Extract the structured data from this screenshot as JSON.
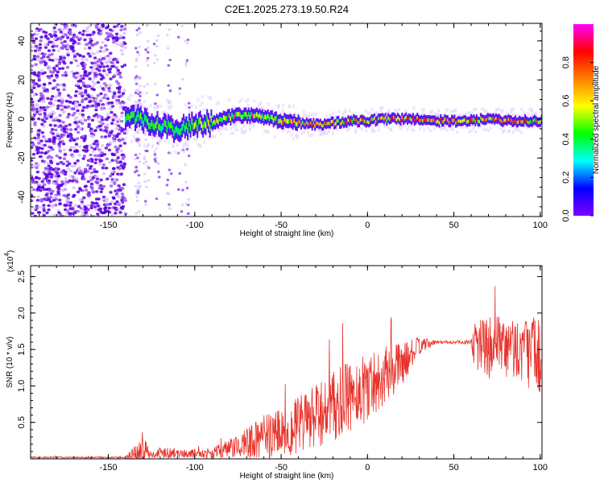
{
  "title": "C2E1.2025.273.19.50.R24",
  "chart_data": [
    {
      "type": "heatmap",
      "title": "C2E1.2025.273.19.50.R24",
      "xlabel": "Height of straight line (km)",
      "ylabel": "Frequency (Hz)",
      "xlim": [
        -195,
        101
      ],
      "ylim": [
        -50,
        49
      ],
      "xticks": [
        -150,
        -100,
        -50,
        0,
        50,
        100
      ],
      "yticks": [
        -40,
        -20,
        0,
        20,
        40
      ],
      "colorbar": {
        "label": "Normalized spectral amplitude",
        "range": [
          0,
          1
        ],
        "ticks": [
          "0.0",
          "0.2",
          "0.4",
          "0.6",
          "0.8"
        ],
        "colormap": [
          "#ffffff",
          "#7f00ff",
          "#0000ff",
          "#00ffff",
          "#00ff00",
          "#ffff00",
          "#ff8000",
          "#ff0000",
          "#ff00ff"
        ]
      },
      "ridge": [
        {
          "x": -140,
          "f": 2
        },
        {
          "x": -130,
          "f": 0
        },
        {
          "x": -120,
          "f": -4
        },
        {
          "x": -110,
          "f": -5
        },
        {
          "x": -100,
          "f": -3
        },
        {
          "x": -90,
          "f": -2
        },
        {
          "x": -80,
          "f": 1
        },
        {
          "x": -70,
          "f": 2
        },
        {
          "x": -60,
          "f": 1
        },
        {
          "x": -50,
          "f": -1
        },
        {
          "x": -40,
          "f": -2
        },
        {
          "x": -30,
          "f": -3
        },
        {
          "x": -20,
          "f": -2
        },
        {
          "x": -10,
          "f": -1
        },
        {
          "x": 0,
          "f": -1
        },
        {
          "x": 10,
          "f": 0
        },
        {
          "x": 20,
          "f": 0
        },
        {
          "x": 30,
          "f": 0
        },
        {
          "x": 40,
          "f": -1
        },
        {
          "x": 50,
          "f": -1
        },
        {
          "x": 60,
          "f": -1
        },
        {
          "x": 70,
          "f": 0
        },
        {
          "x": 80,
          "f": -1
        },
        {
          "x": 90,
          "f": -1
        },
        {
          "x": 100,
          "f": -1
        }
      ]
    },
    {
      "type": "line",
      "xlabel": "Height of straight line (km)",
      "ylabel": "SNR (10 * v/v)",
      "multiplier": "(x10",
      "multiplier_exp": "4",
      "multiplier_close": ")",
      "xlim": [
        -195,
        101
      ],
      "ylim": [
        0,
        2.65
      ],
      "xticks": [
        -150,
        -100,
        -50,
        0,
        50,
        100
      ],
      "yticks": [
        "0.5",
        "1.0",
        "1.5",
        "2.0",
        "2.5"
      ],
      "color": "#e8332b",
      "envelope": [
        {
          "x": -195,
          "mean": 0.02,
          "amp": 0.01
        },
        {
          "x": -140,
          "mean": 0.02,
          "amp": 0.01
        },
        {
          "x": -135,
          "mean": 0.08,
          "amp": 0.12
        },
        {
          "x": -130,
          "mean": 0.12,
          "amp": 0.2
        },
        {
          "x": -125,
          "mean": 0.05,
          "amp": 0.04
        },
        {
          "x": -118,
          "mean": 0.1,
          "amp": 0.1
        },
        {
          "x": -110,
          "mean": 0.07,
          "amp": 0.05
        },
        {
          "x": -90,
          "mean": 0.08,
          "amp": 0.07
        },
        {
          "x": -78,
          "mean": 0.15,
          "amp": 0.15
        },
        {
          "x": -60,
          "mean": 0.3,
          "amp": 0.3
        },
        {
          "x": -40,
          "mean": 0.45,
          "amp": 0.4
        },
        {
          "x": -20,
          "mean": 0.7,
          "amp": 0.5
        },
        {
          "x": 0,
          "mean": 1.0,
          "amp": 0.5
        },
        {
          "x": 20,
          "mean": 1.3,
          "amp": 0.3
        },
        {
          "x": 30,
          "mean": 1.55,
          "amp": 0.12
        },
        {
          "x": 40,
          "mean": 1.6,
          "amp": 0.02
        },
        {
          "x": 60,
          "mean": 1.6,
          "amp": 0.03
        },
        {
          "x": 62,
          "mean": 1.6,
          "amp": 0.4
        },
        {
          "x": 75,
          "mean": 1.5,
          "amp": 0.45
        },
        {
          "x": 90,
          "mean": 1.5,
          "amp": 0.45
        },
        {
          "x": 100,
          "mean": 1.4,
          "amp": 0.6
        }
      ]
    }
  ]
}
